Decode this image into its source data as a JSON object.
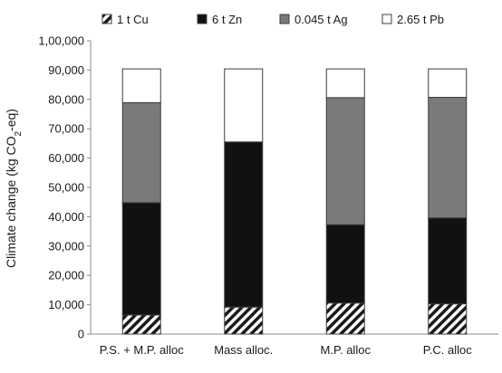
{
  "chart_data": {
    "type": "bar",
    "stacked": true,
    "categories": [
      "P.S. + M.P. alloc",
      "Mass alloc.",
      "M.P. alloc",
      "P.C. alloc"
    ],
    "series": [
      {
        "name": "1 t Cu",
        "values": [
          6500,
          9200,
          10600,
          10300
        ],
        "pattern": "hatch",
        "color": "#1a1a1a"
      },
      {
        "name": "6 t Zn",
        "values": [
          38300,
          56300,
          26700,
          29300
        ],
        "pattern": "solid",
        "color": "#111111"
      },
      {
        "name": "0.045 t Ag",
        "values": [
          34100,
          0,
          43300,
          41100
        ],
        "pattern": "solid",
        "color": "#7a7a7a"
      },
      {
        "name": "2.65 t Pb",
        "values": [
          11500,
          24900,
          9800,
          9700
        ],
        "pattern": "solid",
        "color": "#ffffff"
      }
    ],
    "ylabel_main": "Climate change (kg CO",
    "ylabel_sub": "2",
    "ylabel_tail": "-eq)",
    "ylim": [
      0,
      100000
    ],
    "yticks": [
      0,
      10000,
      20000,
      30000,
      40000,
      50000,
      60000,
      70000,
      80000,
      90000,
      100000
    ],
    "ytick_labels": [
      "0",
      "10,000",
      "20,000",
      "30,000",
      "40,000",
      "50,000",
      "60,000",
      "70,000",
      "80,000",
      "90,000",
      "1,00,000"
    ],
    "legend_position": "top",
    "grid": false
  }
}
